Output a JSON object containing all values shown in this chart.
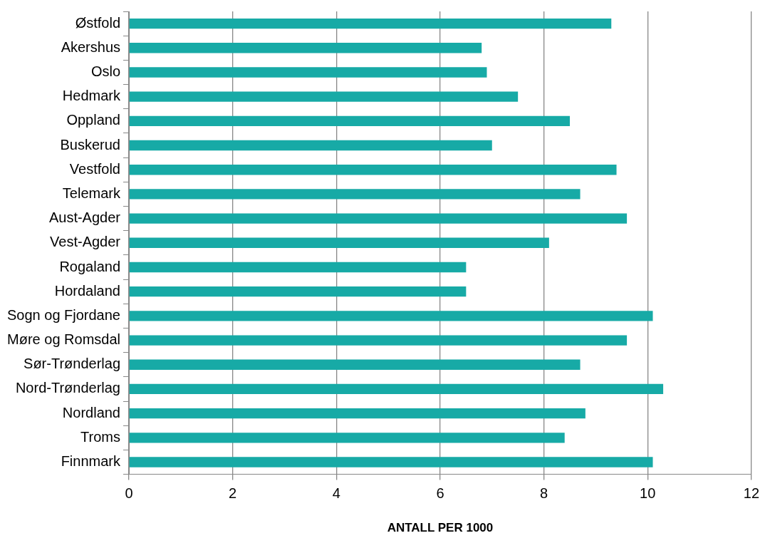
{
  "chart_data": {
    "type": "bar",
    "orientation": "horizontal",
    "xlabel": "ANTALL PER 1000",
    "categories": [
      "Østfold",
      "Akershus",
      "Oslo",
      "Hedmark",
      "Oppland",
      "Buskerud",
      "Vestfold",
      "Telemark",
      "Aust-Agder",
      "Vest-Agder",
      "Rogaland",
      "Hordaland",
      "Sogn og Fjordane",
      "Møre og Romsdal",
      "Sør-Trønderlag",
      "Nord-Trønderlag",
      "Nordland",
      "Troms",
      "Finnmark"
    ],
    "values": [
      9.3,
      6.8,
      6.9,
      7.5,
      8.5,
      7.0,
      9.4,
      8.7,
      9.6,
      8.1,
      6.5,
      6.5,
      10.1,
      9.6,
      8.7,
      10.3,
      8.8,
      8.4,
      10.1
    ],
    "color": "#17aaa6",
    "xlim": [
      0,
      12
    ],
    "xticks": [
      0,
      2,
      4,
      6,
      8,
      10,
      12
    ],
    "grid": "x"
  }
}
